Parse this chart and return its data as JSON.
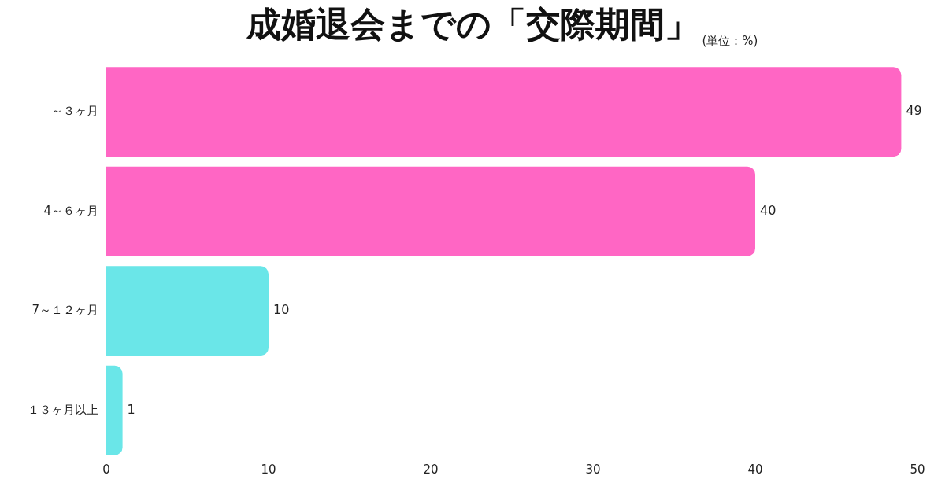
{
  "chart_data": {
    "type": "bar",
    "orientation": "horizontal",
    "title": "成婚退会までの「交際期間」",
    "subtitle": "(単位：%)",
    "categories": [
      "～３ヶ月",
      "4～６ヶ月",
      "7～１２ヶ月",
      "１３ヶ月以上"
    ],
    "values": [
      49,
      40,
      10,
      1
    ],
    "colors": [
      "#ff66c4",
      "#ff66c4",
      "#6ae6e8",
      "#6ae6e8"
    ],
    "xlim": [
      0,
      50
    ],
    "xticks": [
      0,
      10,
      20,
      30,
      40,
      50
    ],
    "data_labels": true,
    "grid": false,
    "legend": false
  }
}
